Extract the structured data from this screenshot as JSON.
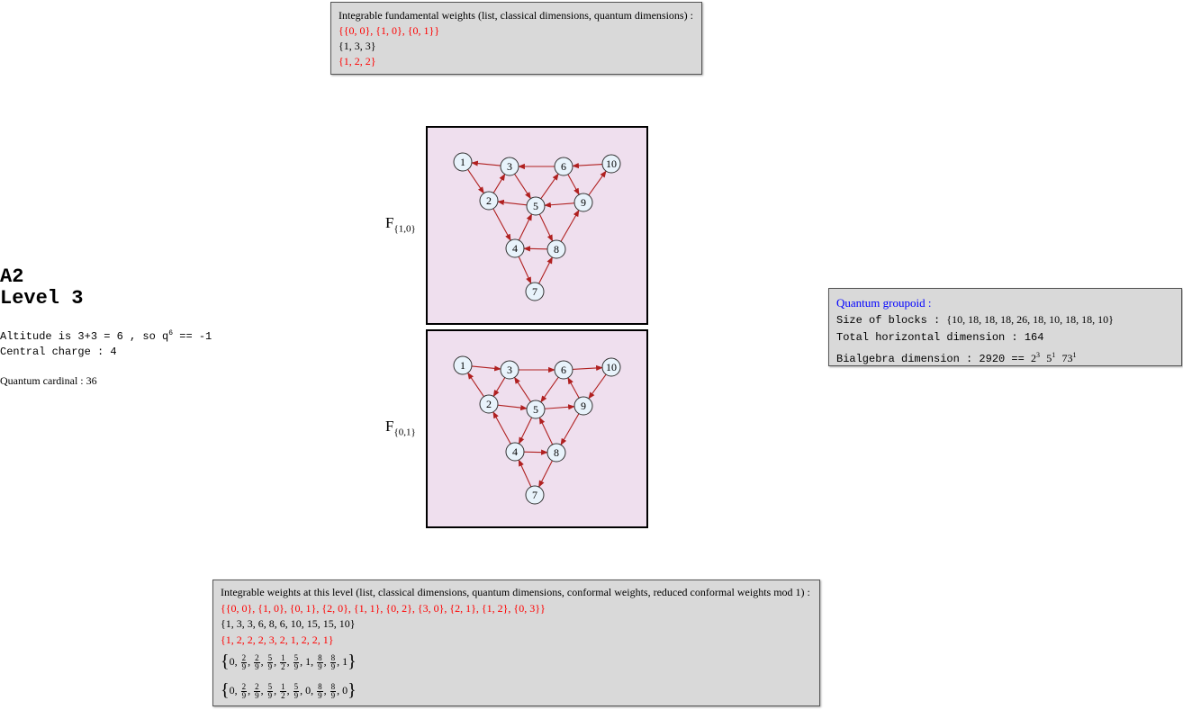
{
  "fundamental": {
    "header": "Integrable fundamental weights  (list, classical dimensions, quantum dimensions) :",
    "list": "{{0, 0}, {1, 0}, {0, 1}}",
    "classical": "{1, 3, 3}",
    "quantum": "{1, 2, 2}"
  },
  "left": {
    "title1": "A2",
    "title2": "Level 3",
    "altitude_text": "Altitude is 3+3 = 6 , so q",
    "altitude_exp": "6",
    "altitude_eq": " == -1",
    "central_charge": "Central charge : 4",
    "quantum_cardinal": "Quantum cardinal : 36"
  },
  "graphs": {
    "g1": {
      "label": "F",
      "sub": "{1,0}"
    },
    "g2": {
      "label": "F",
      "sub": "{0,1}"
    },
    "nodes": [
      {
        "id": "1"
      },
      {
        "id": "2"
      },
      {
        "id": "3"
      },
      {
        "id": "4"
      },
      {
        "id": "5"
      },
      {
        "id": "6"
      },
      {
        "id": "7"
      },
      {
        "id": "8"
      },
      {
        "id": "9"
      },
      {
        "id": "10"
      }
    ],
    "edges_g1": [
      [
        "3",
        "1"
      ],
      [
        "6",
        "3"
      ],
      [
        "10",
        "6"
      ],
      [
        "1",
        "2"
      ],
      [
        "2",
        "3"
      ],
      [
        "3",
        "5"
      ],
      [
        "5",
        "2"
      ],
      [
        "5",
        "6"
      ],
      [
        "6",
        "9"
      ],
      [
        "9",
        "5"
      ],
      [
        "9",
        "10"
      ],
      [
        "2",
        "4"
      ],
      [
        "4",
        "5"
      ],
      [
        "5",
        "8"
      ],
      [
        "8",
        "4"
      ],
      [
        "8",
        "9"
      ],
      [
        "4",
        "7"
      ],
      [
        "7",
        "8"
      ]
    ],
    "edges_g2": [
      [
        "1",
        "3"
      ],
      [
        "3",
        "6"
      ],
      [
        "6",
        "10"
      ],
      [
        "2",
        "1"
      ],
      [
        "3",
        "2"
      ],
      [
        "5",
        "3"
      ],
      [
        "2",
        "5"
      ],
      [
        "6",
        "5"
      ],
      [
        "9",
        "6"
      ],
      [
        "5",
        "9"
      ],
      [
        "10",
        "9"
      ],
      [
        "4",
        "2"
      ],
      [
        "5",
        "4"
      ],
      [
        "8",
        "5"
      ],
      [
        "4",
        "8"
      ],
      [
        "9",
        "8"
      ],
      [
        "7",
        "4"
      ],
      [
        "8",
        "7"
      ]
    ]
  },
  "groupoid": {
    "title": "Quantum groupoid :",
    "blocks_label": "Size of blocks : ",
    "blocks_value": "{10, 18, 18, 18, 26, 18, 10, 18, 18, 10}",
    "total": "Total horizontal dimension : 164",
    "bialg_label": "Bialgebra dimension : 2920 == ",
    "factors": [
      {
        "base": "2",
        "exp": "3"
      },
      {
        "base": "5",
        "exp": "1"
      },
      {
        "base": "73",
        "exp": "1"
      }
    ]
  },
  "weights": {
    "header": "Integrable weights at this level  (list, classical dimensions, quantum dimensions, conformal weights, reduced conformal weights mod 1) :",
    "list": "{{0, 0}, {1, 0}, {0, 1}, {2, 0}, {1, 1}, {0, 2}, {3, 0}, {2, 1}, {1, 2}, {0, 3}}",
    "classical": "{1, 3, 3, 6, 8, 6, 10, 15, 15, 10}",
    "quantum": "{1, 2, 2, 2, 3, 2, 1, 2, 2, 1}",
    "conformal": [
      "0",
      "2/9",
      "2/9",
      "5/9",
      "1/2",
      "5/9",
      "1",
      "8/9",
      "8/9",
      "1"
    ],
    "reduced": [
      "0",
      "2/9",
      "2/9",
      "5/9",
      "1/2",
      "5/9",
      "0",
      "8/9",
      "8/9",
      "0"
    ]
  }
}
